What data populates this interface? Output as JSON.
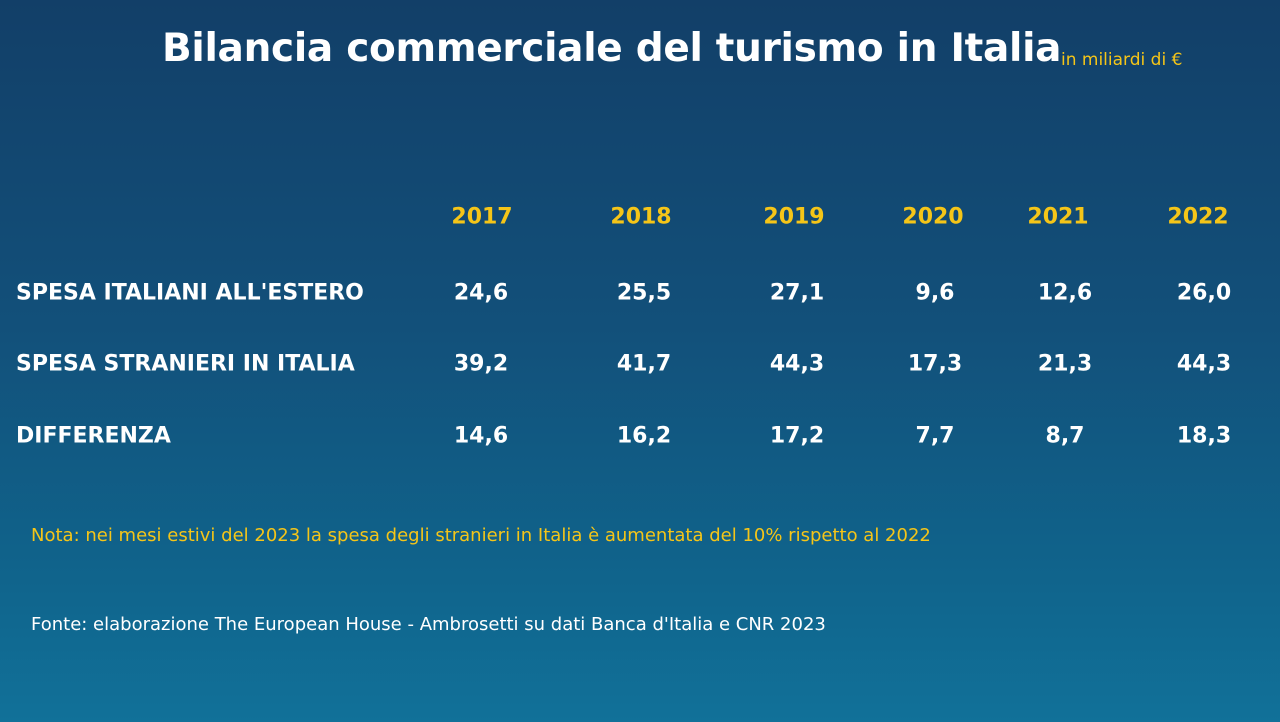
{
  "title": "Bilancia commerciale del turismo in Italia",
  "unit": "in miliardi di €",
  "note": "Nota: nei mesi estivi del 2023 la spesa degli stranieri in Italia è aumentata del 10% rispetto al 2022",
  "source": "Fonte: elaborazione The European House - Ambrosetti su dati Banca d'Italia e CNR 2023",
  "colors": {
    "accent": "#f5c518",
    "text": "#ffffff",
    "background_top": "#123f68",
    "background_bottom": "#117199"
  },
  "chart_data": {
    "type": "table",
    "title": "Bilancia commerciale del turismo in Italia",
    "unit": "in miliardi di €",
    "columns": [
      "2017",
      "2018",
      "2019",
      "2020",
      "2021",
      "2022"
    ],
    "rows": [
      {
        "label": "SPESA ITALIANI ALL'ESTERO",
        "values": [
          "24,6",
          "25,5",
          "27,1",
          "9,6",
          "12,6",
          "26,0"
        ]
      },
      {
        "label": "SPESA STRANIERI IN ITALIA",
        "values": [
          "39,2",
          "41,7",
          "44,3",
          "17,3",
          "21,3",
          "44,3"
        ]
      },
      {
        "label": "DIFFERENZA",
        "values": [
          "14,6",
          "16,2",
          "17,2",
          "7,7",
          "8,7",
          "18,3"
        ]
      }
    ]
  }
}
